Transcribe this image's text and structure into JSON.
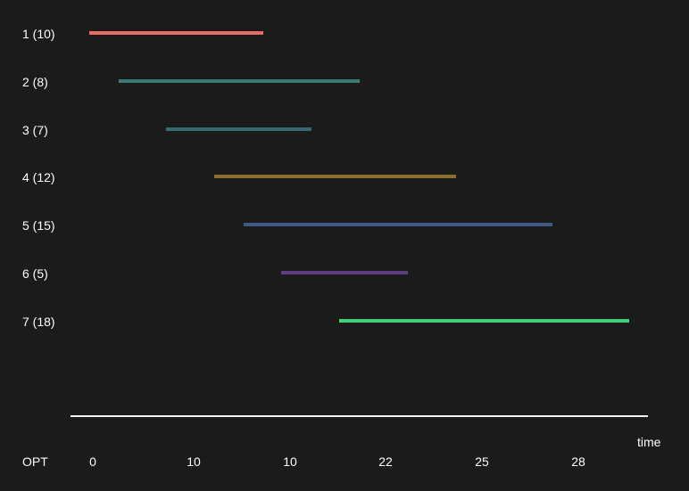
{
  "jobs": [
    {
      "label": "1 (10)",
      "color": "#ea6b66"
    },
    {
      "label": "2 (8)",
      "color": "#3b7a72"
    },
    {
      "label": "3 (7)",
      "color": "#386870"
    },
    {
      "label": "4 (12)",
      "color": "#8a6e2e"
    },
    {
      "label": "5 (15)",
      "color": "#3e5a84"
    },
    {
      "label": "6 (5)",
      "color": "#5e3f84"
    },
    {
      "label": "7 (18)",
      "color": "#3fd07c"
    }
  ],
  "axis": {
    "title": "time"
  },
  "opt": {
    "label": "OPT",
    "values": [
      "0",
      "10",
      "10",
      "22",
      "25",
      "28"
    ]
  }
}
